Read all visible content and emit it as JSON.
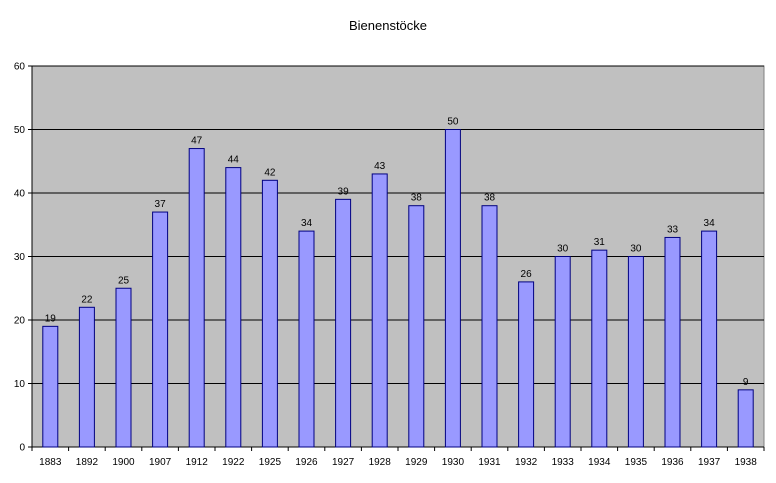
{
  "chart_data": {
    "type": "bar",
    "title": "Bienenstöcke",
    "xlabel": "",
    "ylabel": "",
    "categories": [
      "1883",
      "1892",
      "1900",
      "1907",
      "1912",
      "1922",
      "1925",
      "1926",
      "1927",
      "1928",
      "1929",
      "1930",
      "1931",
      "1932",
      "1933",
      "1934",
      "1935",
      "1936",
      "1937",
      "1938"
    ],
    "values": [
      19,
      22,
      25,
      37,
      47,
      44,
      42,
      34,
      39,
      43,
      38,
      50,
      38,
      26,
      30,
      31,
      30,
      33,
      34,
      9
    ],
    "ylim": [
      0,
      60
    ],
    "yticks": [
      0,
      10,
      20,
      30,
      40,
      50,
      60
    ],
    "grid": true,
    "legend": "none",
    "data_labels": true,
    "colors": {
      "bar_fill": "#9999ff",
      "bar_stroke": "#000080",
      "plot_background": "#c0c0c0",
      "gridline": "#000000"
    }
  }
}
